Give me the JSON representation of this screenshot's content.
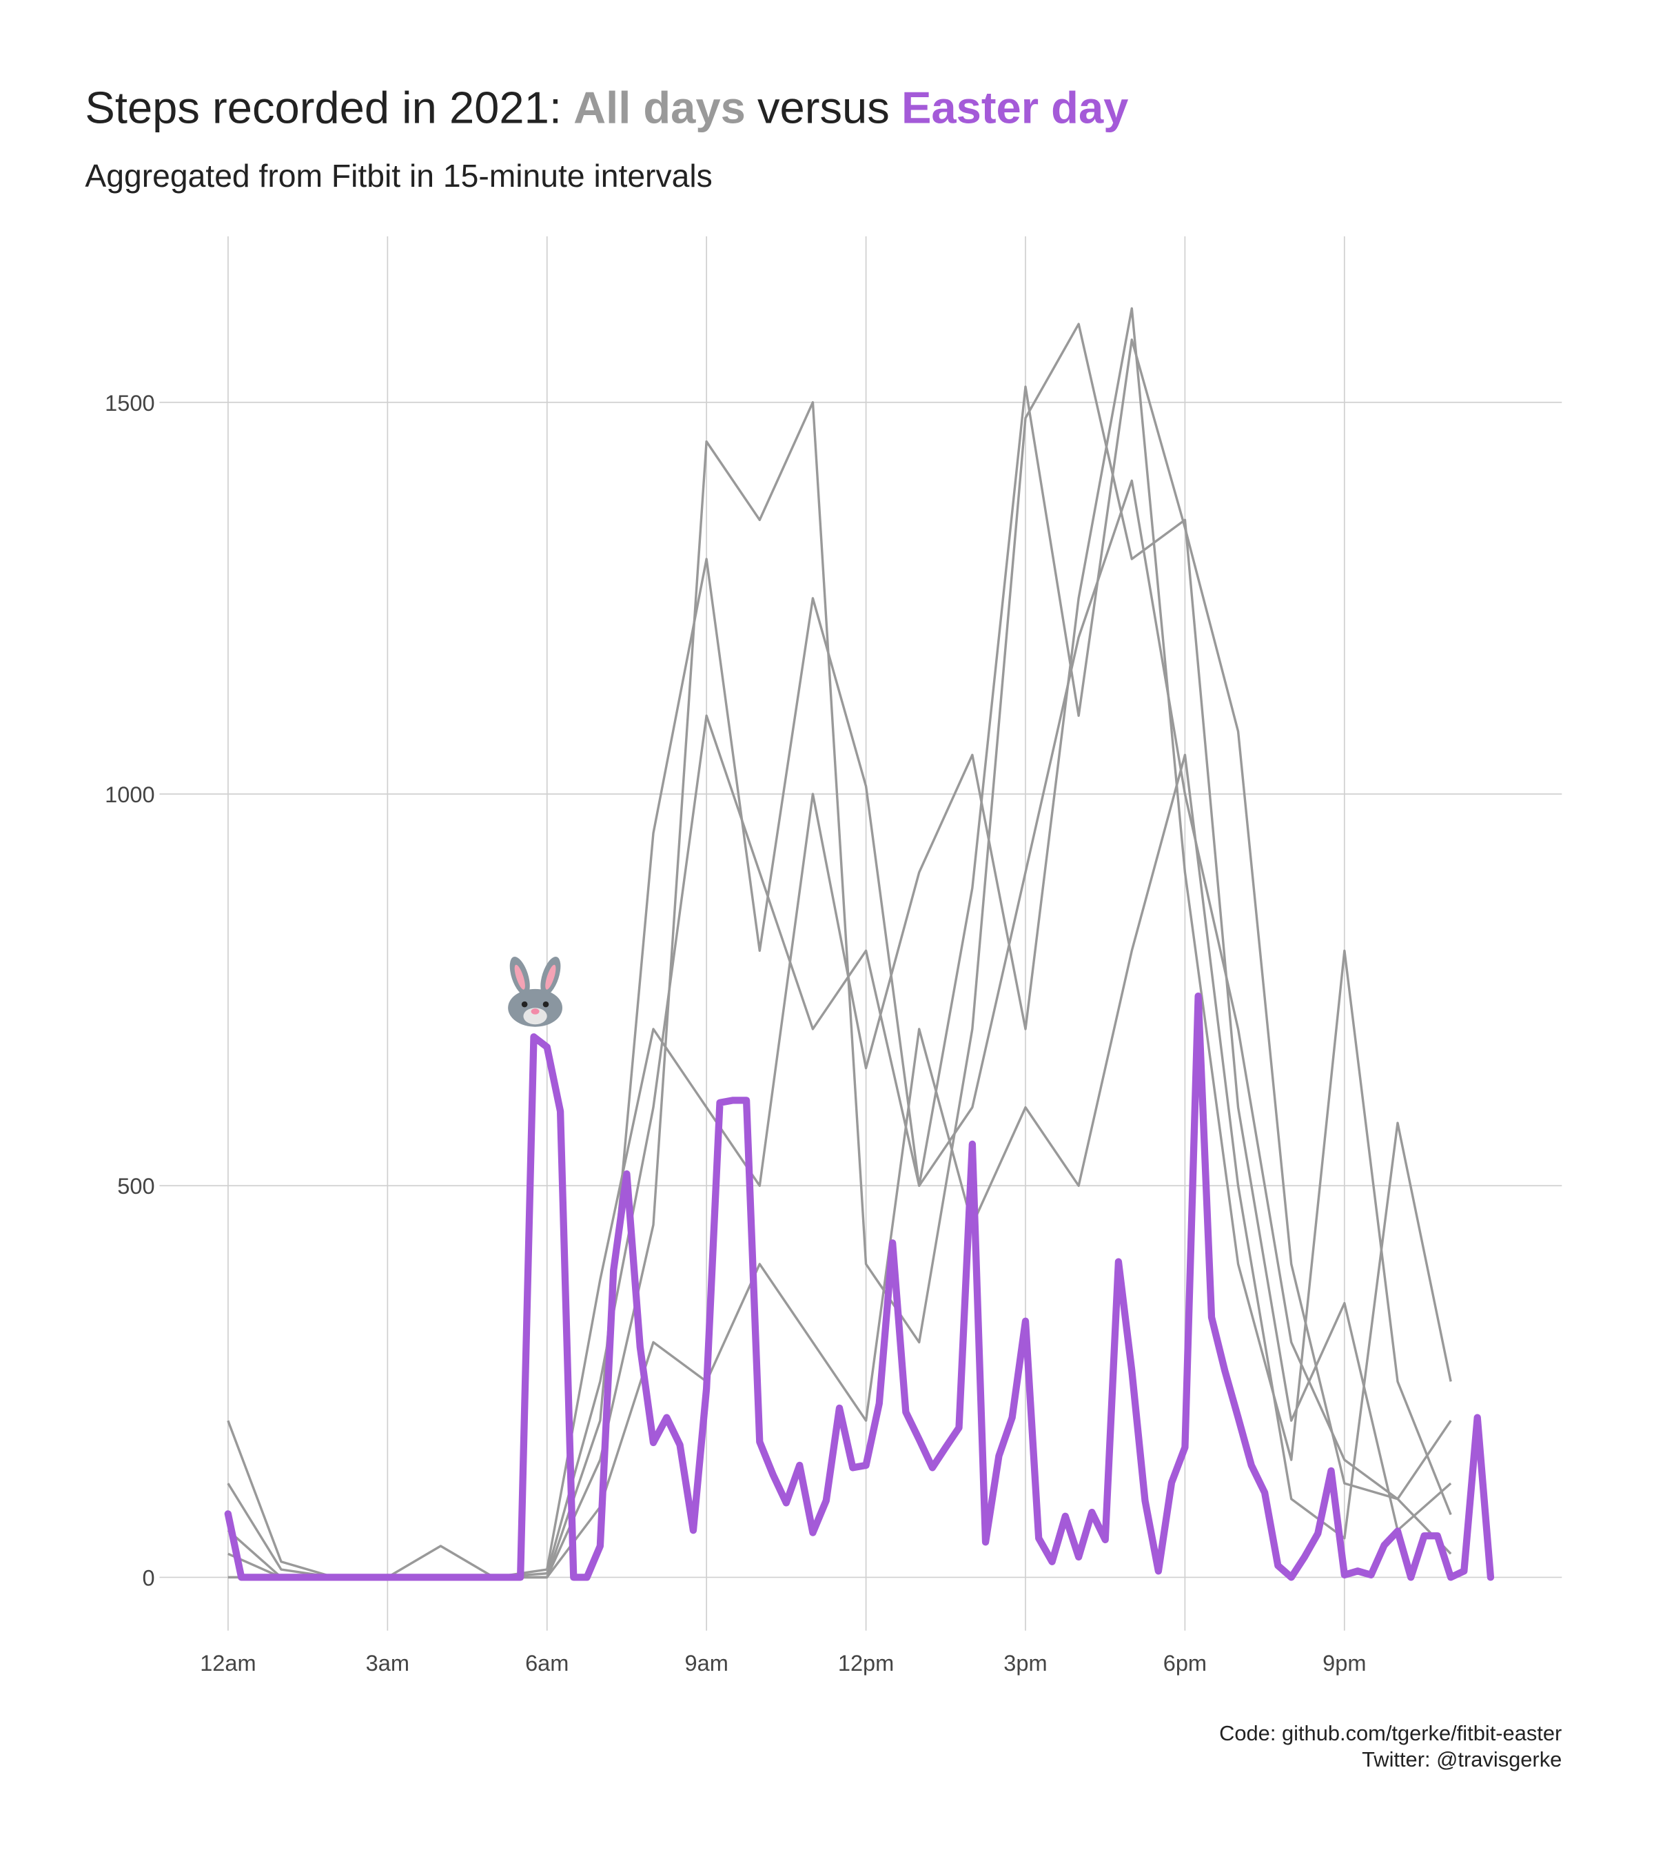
{
  "chart_data": {
    "type": "line",
    "title": "Steps recorded in 2021:",
    "title_joiner": "versus",
    "subtitle": "Aggregated from Fitbit in 15-minute intervals",
    "caption": [
      "Code: github.com/tgerke/fitbit-easter",
      "Twitter: @travisgerke"
    ],
    "x": [
      0,
      0.25,
      0.5,
      0.75,
      1,
      1.25,
      1.5,
      1.75,
      2,
      2.25,
      2.5,
      2.75,
      3,
      3.25,
      3.5,
      3.75,
      4,
      4.25,
      4.5,
      4.75,
      5,
      5.25,
      5.5,
      5.75,
      6,
      6.25,
      6.5,
      6.75,
      7,
      7.25,
      7.5,
      7.75,
      8,
      8.25,
      8.5,
      8.75,
      9,
      9.25,
      9.5,
      9.75,
      10,
      10.25,
      10.5,
      10.75,
      11,
      11.25,
      11.5,
      11.75,
      12,
      12.25,
      12.5,
      12.75,
      13,
      13.25,
      13.5,
      13.75,
      14,
      14.25,
      14.5,
      14.75,
      15,
      15.25,
      15.5,
      15.75,
      16,
      16.25,
      16.5,
      16.75,
      17,
      17.25,
      17.5,
      17.75,
      18,
      18.25,
      18.5,
      18.75,
      19,
      19.25,
      19.5,
      19.75,
      20,
      20.25,
      20.5,
      20.75,
      21,
      21.25,
      21.5,
      21.75,
      22,
      22.25,
      22.5,
      22.75,
      23,
      23.25,
      23.5,
      23.75
    ],
    "series": [
      {
        "name": "All days",
        "color": "#999999",
        "x": [
          0,
          1,
          2,
          3,
          4,
          5,
          6,
          7,
          8,
          9,
          10,
          11,
          12,
          13,
          14,
          15,
          16,
          17,
          18,
          19,
          20,
          21,
          22,
          23
        ],
        "lines": [
          {
            "values": [
              120,
              10,
              0,
              0,
              0,
              0,
              5,
              250,
              600,
              1100,
              900,
              700,
              800,
              500,
              600,
              900,
              1200,
              1400,
              1000,
              700,
              300,
              150,
              100,
              200
            ]
          },
          {
            "values": [
              60,
              0,
              0,
              0,
              0,
              0,
              0,
              150,
              450,
              1450,
              1350,
              1500,
              400,
              300,
              700,
              1480,
              1600,
              1300,
              1350,
              600,
              200,
              350,
              60,
              120
            ]
          },
          {
            "values": [
              200,
              20,
              0,
              0,
              0,
              0,
              10,
              380,
              700,
              600,
              500,
              1000,
              650,
              900,
              1050,
              700,
              1250,
              1620,
              900,
              400,
              150,
              800,
              250,
              80
            ]
          },
          {
            "values": [
              30,
              0,
              0,
              0,
              40,
              0,
              0,
              90,
              300,
              250,
              400,
              300,
              200,
              700,
              450,
              600,
              500,
              800,
              1050,
              500,
              100,
              50,
              580,
              250
            ]
          },
          {
            "values": [
              0,
              0,
              0,
              0,
              0,
              0,
              0,
              200,
              950,
              1300,
              800,
              1250,
              1010,
              500,
              880,
              1520,
              1100,
              1580,
              1340,
              1080,
              400,
              120,
              100,
              30
            ]
          }
        ]
      },
      {
        "name": "Easter day",
        "color": "#a45ad8",
        "values": [
          81,
          0,
          0,
          0,
          0,
          0,
          0,
          0,
          0,
          0,
          0,
          0,
          0,
          0,
          0,
          0,
          0,
          0,
          0,
          0,
          0,
          0,
          0,
          690,
          677,
          595,
          0,
          0,
          40,
          392,
          515,
          294,
          172,
          204,
          169,
          60,
          241,
          606,
          609,
          609,
          173,
          131,
          95,
          143,
          57,
          98,
          216,
          140,
          143,
          222,
          427,
          211,
          176,
          140,
          166,
          191,
          553,
          45,
          155,
          204,
          327,
          50,
          20,
          78,
          26,
          83,
          48,
          403,
          264,
          98,
          8,
          121,
          166,
          742,
          332,
          264,
          204,
          143,
          108,
          15,
          0,
          26,
          56,
          136,
          3,
          8,
          3,
          41,
          59,
          0,
          53,
          53,
          0,
          8,
          204,
          0
        ]
      }
    ],
    "xlim": [
      -1.29,
      25.09
    ],
    "ylim": [
      -68,
      1712
    ],
    "xticks": [
      {
        "value": 0,
        "label": "12am"
      },
      {
        "value": 3,
        "label": "3am"
      },
      {
        "value": 6,
        "label": "6am"
      },
      {
        "value": 9,
        "label": "9am"
      },
      {
        "value": 12,
        "label": "12pm"
      },
      {
        "value": 15,
        "label": "3pm"
      },
      {
        "value": 18,
        "label": "6pm"
      },
      {
        "value": 21,
        "label": "9pm"
      }
    ],
    "yticks": [
      0,
      500,
      1000,
      1500
    ],
    "grid": true
  }
}
